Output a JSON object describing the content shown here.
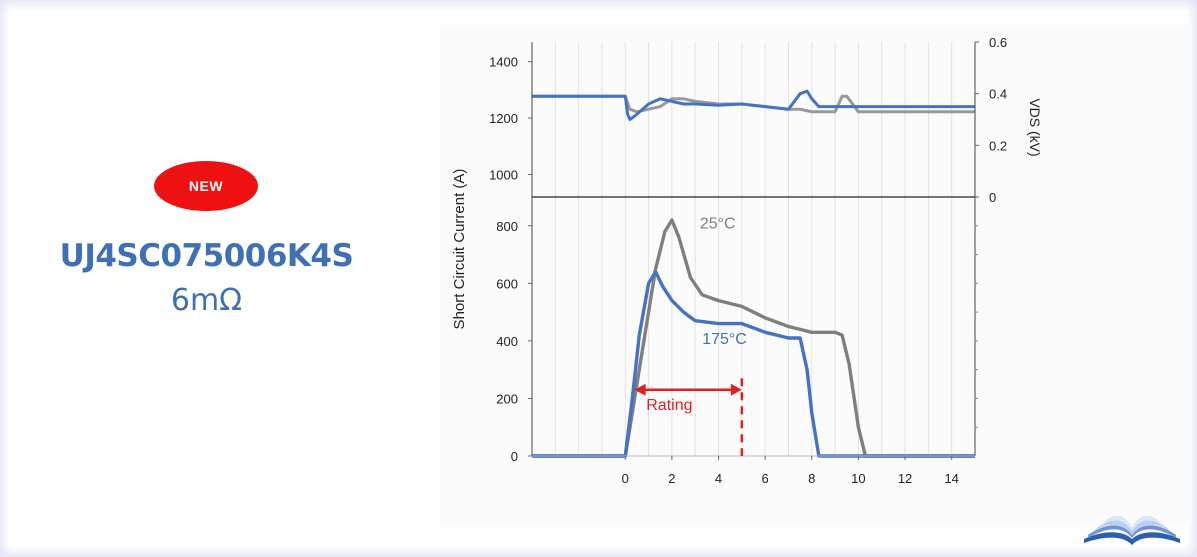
{
  "product": {
    "badge": "NEW",
    "part_number": "UJ4SC075006K4S",
    "resistance": "6mΩ"
  },
  "colors": {
    "accent": "#3f70b5",
    "badge": "#ee1111",
    "rating": "#e02020",
    "series_175": "#4472c4",
    "series_25": "#7f7f7f"
  },
  "chart_data": {
    "type": "line",
    "xlabel": "",
    "ylabel": "Short Circuit Current (A)",
    "y2label": "VDS (kV)",
    "xticks": [
      "0",
      "2",
      "4",
      "6",
      "8",
      "10",
      "12",
      "14"
    ],
    "yticks": [
      "0",
      "200",
      "400",
      "600",
      "800",
      "1000",
      "1200",
      "1400"
    ],
    "y2ticks": [
      "0",
      "0.2",
      "0.4",
      "0.6"
    ],
    "xlim": [
      -4,
      15
    ],
    "ylim_current": [
      0,
      900
    ],
    "ylim_upper_axis": [
      920,
      1470
    ],
    "y2lim": [
      0,
      0.6
    ],
    "grid": "vertical",
    "current_series": [
      {
        "name": "25°C",
        "color": "#7f7f7f",
        "x": [
          -4,
          0,
          0.3,
          0.8,
          1.3,
          1.7,
          2.0,
          2.3,
          2.8,
          3.3,
          4.0,
          5.0,
          6.0,
          7.0,
          8.0,
          9.0,
          9.3,
          9.6,
          10.0,
          10.3,
          15
        ],
        "y": [
          0,
          0,
          150,
          400,
          650,
          780,
          820,
          760,
          620,
          560,
          540,
          520,
          480,
          450,
          430,
          430,
          420,
          320,
          100,
          0,
          0
        ]
      },
      {
        "name": "175°C",
        "color": "#4472c4",
        "x": [
          -4,
          0,
          0.3,
          0.6,
          1.0,
          1.3,
          1.6,
          2.0,
          2.5,
          3.0,
          4.0,
          5.0,
          6.0,
          7.0,
          7.5,
          7.8,
          8.0,
          8.3,
          15
        ],
        "y": [
          0,
          0,
          200,
          420,
          600,
          640,
          590,
          540,
          500,
          470,
          460,
          460,
          430,
          410,
          410,
          300,
          150,
          0,
          0
        ]
      }
    ],
    "vds_series": [
      {
        "name": "25°C",
        "color": "#999999",
        "x": [
          -4,
          0,
          0.2,
          0.5,
          1.0,
          1.5,
          2.0,
          2.5,
          3.0,
          4.0,
          5.0,
          6.0,
          7.0,
          7.5,
          8.0,
          9.0,
          9.3,
          9.5,
          10.0,
          11.0,
          12.0,
          15
        ],
        "y": [
          0.39,
          0.39,
          0.34,
          0.33,
          0.34,
          0.35,
          0.38,
          0.38,
          0.37,
          0.36,
          0.36,
          0.35,
          0.34,
          0.34,
          0.33,
          0.33,
          0.39,
          0.39,
          0.33,
          0.33,
          0.33,
          0.33
        ]
      },
      {
        "name": "175°C",
        "color": "#4472c4",
        "x": [
          -4,
          0,
          0.1,
          0.2,
          0.5,
          1.0,
          1.5,
          2.0,
          2.5,
          3.0,
          4.0,
          5.0,
          6.0,
          7.0,
          7.5,
          7.8,
          8.0,
          8.3,
          9.0,
          10.0,
          12.0,
          15
        ],
        "y": [
          0.39,
          0.39,
          0.32,
          0.3,
          0.32,
          0.36,
          0.38,
          0.37,
          0.36,
          0.36,
          0.355,
          0.36,
          0.35,
          0.34,
          0.4,
          0.41,
          0.38,
          0.35,
          0.35,
          0.35,
          0.35,
          0.35
        ]
      }
    ],
    "annotations": [
      {
        "text": "25°C",
        "x": 3.2,
        "y": 790,
        "color": "#7f7f7f"
      },
      {
        "text": "175°C",
        "x": 3.3,
        "y": 390,
        "color": "#3f70b5"
      },
      {
        "text": "Rating",
        "x": 0.9,
        "y": 160,
        "color": "#e02020"
      }
    ],
    "rating": {
      "from": 0.4,
      "to": 5.0,
      "y": 230,
      "marker_x": 5.0
    }
  }
}
